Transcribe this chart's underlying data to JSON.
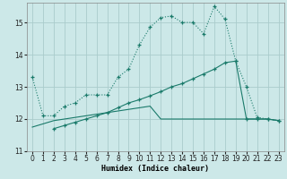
{
  "xlabel": "Humidex (Indice chaleur)",
  "bg_color": "#cce8e8",
  "grid_color": "#aacccc",
  "line_color": "#1a7a6a",
  "xlim": [
    -0.5,
    23.5
  ],
  "ylim": [
    11,
    15.6
  ],
  "yticks": [
    11,
    12,
    13,
    14,
    15
  ],
  "xticks": [
    0,
    1,
    2,
    3,
    4,
    5,
    6,
    7,
    8,
    9,
    10,
    11,
    12,
    13,
    14,
    15,
    16,
    17,
    18,
    19,
    20,
    21,
    22,
    23
  ],
  "curve1_x": [
    0,
    1,
    2,
    3,
    4,
    5,
    6,
    7,
    8,
    9,
    10,
    11,
    12,
    13,
    14,
    15,
    16,
    17,
    18,
    19,
    20,
    21,
    22,
    23
  ],
  "curve1_y": [
    13.3,
    12.1,
    12.1,
    12.4,
    12.5,
    12.75,
    12.75,
    12.75,
    13.3,
    13.55,
    14.3,
    14.85,
    15.15,
    15.2,
    15.0,
    15.0,
    14.65,
    15.5,
    15.1,
    13.8,
    13.0,
    12.05,
    12.0,
    11.95
  ],
  "curve2_x": [
    2,
    3,
    4,
    5,
    6,
    7,
    8,
    9,
    10,
    11,
    12,
    13,
    14,
    15,
    16,
    17,
    18,
    19,
    20,
    21,
    22,
    23
  ],
  "curve2_y": [
    11.7,
    11.8,
    11.9,
    12.0,
    12.1,
    12.2,
    12.35,
    12.5,
    12.6,
    12.72,
    12.85,
    13.0,
    13.1,
    13.25,
    13.4,
    13.55,
    13.75,
    13.8,
    12.0,
    12.0,
    12.0,
    11.95
  ],
  "curve3_x": [
    0,
    1,
    2,
    3,
    4,
    5,
    6,
    7,
    8,
    9,
    10,
    11,
    12,
    13,
    14,
    15,
    16,
    17,
    18,
    19,
    20,
    21,
    22,
    23
  ],
  "curve3_y": [
    11.75,
    11.85,
    11.95,
    12.0,
    12.05,
    12.1,
    12.15,
    12.2,
    12.25,
    12.3,
    12.35,
    12.4,
    12.0,
    12.0,
    12.0,
    12.0,
    12.0,
    12.0,
    12.0,
    12.0,
    12.0,
    12.0,
    12.0,
    11.95
  ]
}
